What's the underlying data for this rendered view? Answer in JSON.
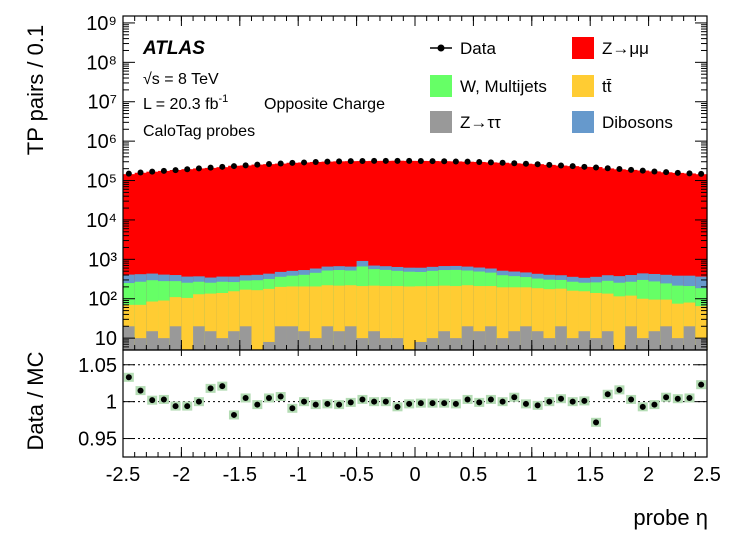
{
  "chart_data": [
    {
      "type": "bar",
      "subtype": "stacked-histogram-with-data-points",
      "ylabel": "TP pairs / 0.1",
      "yscale": "log",
      "ylim": [
        5,
        1500000000.0
      ],
      "xlim": [
        -2.5,
        2.5
      ],
      "ytick_labels": [
        "10",
        "10²",
        "10³",
        "10⁴",
        "10⁵",
        "10⁶",
        "10⁷",
        "10⁸",
        "10⁹"
      ],
      "ytick_values": [
        10,
        100,
        1000,
        10000,
        100000,
        1000000,
        10000000,
        100000000,
        1000000000
      ],
      "annotations": {
        "experiment": "ATLAS",
        "energy_root": "√s",
        "energy_value": " = 8 TeV",
        "lumi_text": "L = 20.3 fb",
        "lumi_sup": "-1",
        "selection": "Opposite Charge",
        "probes": "CaloTag probes"
      },
      "legend_position": "top-right",
      "legend": [
        {
          "label": "Data",
          "kind": "marker",
          "color": "#000000"
        },
        {
          "label": "Z→μμ",
          "kind": "fill",
          "color": "#ff0000"
        },
        {
          "label": "W, Multijets",
          "kind": "fill",
          "color": "#66ff66"
        },
        {
          "label": "tt̄",
          "kind": "fill",
          "color": "#ffcc33"
        },
        {
          "label": "Z→ττ",
          "kind": "fill",
          "color": "#999999"
        },
        {
          "label": "Dibosons",
          "kind": "fill",
          "color": "#6699cc"
        }
      ],
      "bin_edges": [
        -2.5,
        2.5
      ],
      "bin_width": 0.1,
      "data_points": [
        150000,
        160000,
        168000,
        176000,
        184000,
        193000,
        203000,
        213000,
        223000,
        233000,
        243000,
        253000,
        262000,
        271000,
        280000,
        288000,
        295000,
        301000,
        306000,
        310000,
        313000,
        315000,
        316000,
        316000,
        315000,
        314000,
        312000,
        309000,
        305000,
        301000,
        296000,
        290000,
        283000,
        275000,
        267000,
        259000,
        250000,
        241000,
        232000,
        223000,
        214000,
        205000,
        196000,
        187000,
        178000,
        170000,
        163000,
        157000,
        152000,
        148000
      ],
      "series": [
        {
          "name": "Z→ττ",
          "color": "#999999",
          "values": [
            20,
            10,
            15,
            10,
            20,
            5,
            20,
            15,
            10,
            15,
            20,
            5,
            8,
            20,
            20,
            15,
            10,
            20,
            15,
            20,
            10,
            15,
            10,
            10,
            5,
            8,
            10,
            15,
            10,
            20,
            15,
            20,
            10,
            15,
            20,
            15,
            10,
            20,
            10,
            15,
            10,
            15,
            5,
            20,
            10,
            15,
            20,
            10,
            20,
            10
          ]
        },
        {
          "name": "tt̄",
          "color": "#ffcc33",
          "values": [
            50,
            60,
            70,
            80,
            90,
            100,
            110,
            120,
            130,
            140,
            150,
            160,
            170,
            180,
            185,
            190,
            195,
            200,
            200,
            200,
            200,
            200,
            200,
            200,
            200,
            200,
            200,
            200,
            200,
            200,
            195,
            190,
            185,
            180,
            175,
            170,
            165,
            160,
            150,
            140,
            130,
            120,
            110,
            100,
            90,
            80,
            75,
            65,
            60,
            55
          ]
        },
        {
          "name": "W, Multijets",
          "color": "#66ff66",
          "values": [
            180,
            200,
            210,
            190,
            170,
            150,
            140,
            120,
            130,
            110,
            120,
            130,
            140,
            160,
            180,
            200,
            250,
            300,
            320,
            300,
            450,
            350,
            330,
            300,
            280,
            270,
            300,
            320,
            330,
            300,
            280,
            250,
            200,
            180,
            160,
            140,
            130,
            120,
            110,
            100,
            120,
            150,
            140,
            150,
            200,
            180,
            150,
            140,
            130,
            120
          ]
        },
        {
          "name": "Dibosons",
          "color": "#6699cc",
          "values": [
            160,
            150,
            140,
            130,
            120,
            110,
            100,
            90,
            95,
            100,
            105,
            110,
            115,
            120,
            125,
            130,
            130,
            135,
            135,
            135,
            250,
            130,
            130,
            130,
            130,
            135,
            135,
            140,
            140,
            135,
            130,
            125,
            120,
            115,
            110,
            105,
            100,
            95,
            90,
            85,
            100,
            110,
            120,
            130,
            140,
            150,
            160,
            170,
            175,
            180
          ]
        },
        {
          "name": "Z→μμ",
          "color": "#ff0000",
          "values": "remainder to match data/ratio"
        }
      ]
    },
    {
      "type": "scatter",
      "xlabel": "probe η",
      "ylabel": "Data / MC",
      "ylim": [
        0.925,
        1.07
      ],
      "xlim": [
        -2.5,
        2.5
      ],
      "ytick_labels": [
        "0.95",
        "1",
        "1.05"
      ],
      "ytick_values": [
        0.95,
        1.0,
        1.05
      ],
      "xtick_labels": [
        "-2.5",
        "-2",
        "-1.5",
        "-1",
        "-0.5",
        "0",
        "0.5",
        "1",
        "1.5",
        "2",
        "2.5"
      ],
      "xtick_values": [
        -2.5,
        -2,
        -1.5,
        -1,
        -0.5,
        0,
        0.5,
        1,
        1.5,
        2,
        2.5
      ],
      "reference_lines": [
        0.95,
        1.0,
        1.05
      ],
      "x": [
        -2.45,
        -2.35,
        -2.25,
        -2.15,
        -2.05,
        -1.95,
        -1.85,
        -1.75,
        -1.65,
        -1.55,
        -1.45,
        -1.35,
        -1.25,
        -1.15,
        -1.05,
        -0.95,
        -0.85,
        -0.75,
        -0.65,
        -0.55,
        -0.45,
        -0.35,
        -0.25,
        -0.15,
        -0.05,
        0.05,
        0.15,
        0.25,
        0.35,
        0.45,
        0.55,
        0.65,
        0.75,
        0.85,
        0.95,
        1.05,
        1.15,
        1.25,
        1.35,
        1.45,
        1.55,
        1.65,
        1.75,
        1.85,
        1.95,
        2.05,
        2.15,
        2.25,
        2.35,
        2.45
      ],
      "y": [
        1.033,
        1.015,
        1.002,
        1.003,
        0.994,
        0.994,
        1.0,
        1.018,
        1.021,
        0.982,
        1.005,
        0.996,
        1.005,
        1.007,
        0.991,
        1.0,
        0.996,
        0.997,
        0.996,
        0.999,
        1.003,
        1.0,
        1.0,
        0.993,
        0.997,
        0.998,
        0.998,
        0.998,
        0.997,
        1.003,
        0.999,
        1.003,
        1.0,
        1.006,
        0.997,
        0.995,
        1.0,
        1.004,
        1.0,
        1.001,
        0.972,
        1.01,
        1.016,
        1.003,
        0.993,
        0.996,
        1.006,
        1.004,
        1.005,
        1.023
      ],
      "error_band_color": "#b4dcb4"
    }
  ]
}
